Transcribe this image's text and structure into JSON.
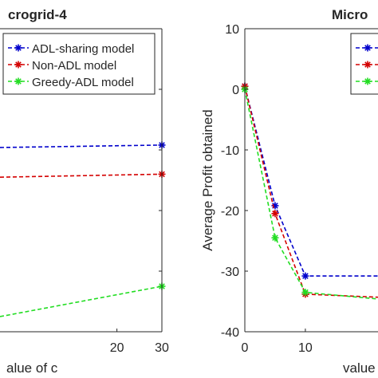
{
  "chart_data": [
    {
      "type": "line",
      "title": "crogrid-4",
      "xlabel": "alue of c",
      "ylabel": "",
      "xlim": [
        -6,
        30
      ],
      "ylim": [
        -40,
        10
      ],
      "x_ticks": [
        "20",
        "30"
      ],
      "x_tick_values": [
        20,
        30
      ],
      "grid": false,
      "legend": "top-right",
      "series": [
        {
          "name": "ADL-sharing model",
          "color": "#0000cc",
          "x": [
            30
          ],
          "y": [
            -9.2
          ]
        },
        {
          "name": "Non-ADL model",
          "color": "#d40000",
          "x": [
            30
          ],
          "y": [
            -14.0
          ]
        },
        {
          "name": "Greedy-ADL model",
          "color": "#22dd22",
          "x": [
            30
          ],
          "y": [
            -32.5
          ]
        }
      ],
      "partial_lines": [
        {
          "color": "#0000cc",
          "from": {
            "x": -6,
            "y": -9.6
          }
        },
        {
          "color": "#d40000",
          "from": {
            "x": -6,
            "y": -14.5
          }
        },
        {
          "color": "#22dd22",
          "from": {
            "x": -6,
            "y": -37.5
          }
        }
      ]
    },
    {
      "type": "line",
      "title": "Micro",
      "xlabel": "value",
      "ylabel": "Average Profit obtained",
      "xlim": [
        0,
        22
      ],
      "ylim": [
        -40,
        10
      ],
      "x_ticks": [
        "0",
        "10"
      ],
      "x_tick_values": [
        0,
        10
      ],
      "y_ticks": [
        "10",
        "0",
        "-10",
        "-20",
        "-30",
        "-40"
      ],
      "y_tick_values": [
        10,
        0,
        -10,
        -20,
        -30,
        -40
      ],
      "grid": false,
      "legend": "top-right",
      "series": [
        {
          "name": "",
          "color": "#0000cc",
          "x": [
            0,
            5,
            10,
            22
          ],
          "y": [
            0.5,
            -19.2,
            -30.8,
            -30.8
          ]
        },
        {
          "name": "",
          "color": "#d40000",
          "x": [
            0,
            5,
            10,
            22
          ],
          "y": [
            0.5,
            -20.5,
            -33.8,
            -34.3
          ]
        },
        {
          "name": "",
          "color": "#22dd22",
          "x": [
            0,
            5,
            10,
            22
          ],
          "y": [
            0.0,
            -24.5,
            -33.5,
            -34.6
          ]
        }
      ]
    }
  ]
}
